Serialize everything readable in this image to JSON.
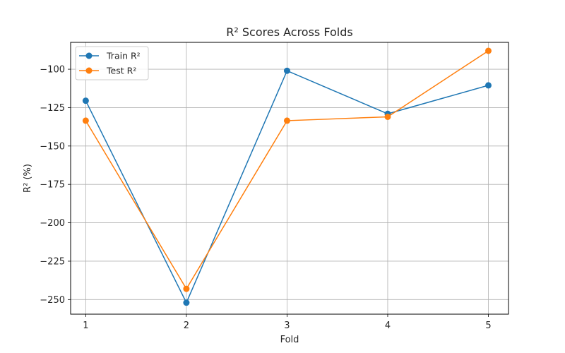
{
  "chart_data": {
    "type": "line",
    "title": "R² Scores Across Folds",
    "xlabel": "Fold",
    "ylabel": "R² (%)",
    "x": [
      1,
      2,
      3,
      4,
      5
    ],
    "xlim": [
      0.85,
      5.2
    ],
    "ylim": [
      -259.5,
      -82.5
    ],
    "yticks": [
      -250,
      -225,
      -200,
      -175,
      -150,
      -125,
      -100
    ],
    "grid": true,
    "legend": "top-left",
    "series": [
      {
        "name": "Train R²",
        "color": "#1f77b4",
        "marker": "circle",
        "values": [
          -120.5,
          -252.0,
          -101.0,
          -129.0,
          -110.5
        ]
      },
      {
        "name": "Test R²",
        "color": "#ff7f0e",
        "marker": "circle",
        "values": [
          -133.5,
          -243.0,
          -133.5,
          -131.0,
          -88.0
        ]
      }
    ]
  }
}
